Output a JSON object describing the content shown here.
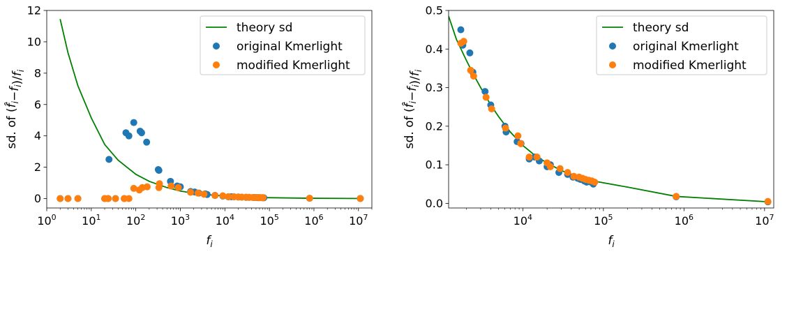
{
  "colors": {
    "theory": "#008000",
    "original": "#1f77b4",
    "modified": "#ff7f0e"
  },
  "chart_data": [
    {
      "type": "scatter",
      "xscale": "log",
      "xlim": [
        1.0,
        20000000
      ],
      "ylim": [
        -0.6,
        12
      ],
      "xlabel": "f_i",
      "ylabel": "sd. of (f̂_i − f_i)/f_i",
      "xticks": [
        {
          "value": 1,
          "base": "10",
          "exp": "0"
        },
        {
          "value": 10,
          "base": "10",
          "exp": "1"
        },
        {
          "value": 100,
          "base": "10",
          "exp": "2"
        },
        {
          "value": 1000,
          "base": "10",
          "exp": "3"
        },
        {
          "value": 10000,
          "base": "10",
          "exp": "4"
        },
        {
          "value": 100000,
          "base": "10",
          "exp": "5"
        },
        {
          "value": 1000000,
          "base": "10",
          "exp": "6"
        },
        {
          "value": 10000000,
          "base": "10",
          "exp": "7"
        }
      ],
      "yticks": [
        {
          "value": 0,
          "label": "0"
        },
        {
          "value": 2,
          "label": "2"
        },
        {
          "value": 4,
          "label": "4"
        },
        {
          "value": 6,
          "label": "6"
        },
        {
          "value": 8,
          "label": "8"
        },
        {
          "value": 10,
          "label": "10"
        },
        {
          "value": 12,
          "label": "12"
        }
      ],
      "legend": {
        "loc": "upper right",
        "entries": [
          "theory sd",
          "original Kmerlight",
          "modified Kmerlight"
        ]
      },
      "series": [
        {
          "name": "theory sd",
          "kind": "line",
          "color_key": "theory",
          "points": [
            [
              2,
              11.45
            ],
            [
              3,
              9.3
            ],
            [
              5,
              7.2
            ],
            [
              10,
              5.15
            ],
            [
              20,
              3.45
            ],
            [
              40,
              2.45
            ],
            [
              100,
              1.55
            ],
            [
              200,
              1.1
            ],
            [
              500,
              0.7
            ],
            [
              1000,
              0.48
            ],
            [
              2000,
              0.34
            ],
            [
              5000,
              0.23
            ],
            [
              10000,
              0.16
            ],
            [
              30000,
              0.1
            ],
            [
              80000,
              0.06
            ],
            [
              800000,
              0.02
            ],
            [
              11000000,
              0.005
            ]
          ]
        },
        {
          "name": "original Kmerlight",
          "kind": "scatter",
          "color_key": "original",
          "points": [
            [
              2,
              0
            ],
            [
              3,
              0
            ],
            [
              5,
              0
            ],
            [
              20,
              0
            ],
            [
              24,
              0
            ],
            [
              25,
              2.5
            ],
            [
              35,
              0
            ],
            [
              55,
              0
            ],
            [
              60,
              4.2
            ],
            [
              70,
              4.0
            ],
            [
              90,
              4.85
            ],
            [
              125,
              4.3
            ],
            [
              135,
              4.2
            ],
            [
              175,
              3.6
            ],
            [
              320,
              1.85
            ],
            [
              330,
              1.8
            ],
            [
              600,
              1.1
            ],
            [
              850,
              0.8
            ],
            [
              1000,
              0.75
            ],
            [
              1700,
              0.45
            ],
            [
              2100,
              0.42
            ],
            [
              2600,
              0.35
            ],
            [
              3600,
              0.3
            ],
            [
              4000,
              0.26
            ],
            [
              6000,
              0.2
            ],
            [
              9000,
              0.16
            ],
            [
              12000,
              0.11
            ],
            [
              14000,
              0.12
            ],
            [
              16000,
              0.11
            ],
            [
              20000,
              0.1
            ],
            [
              24000,
              0.09
            ],
            [
              30000,
              0.08
            ],
            [
              35000,
              0.08
            ],
            [
              45000,
              0.07
            ],
            [
              50000,
              0.07
            ],
            [
              55000,
              0.06
            ],
            [
              60000,
              0.06
            ],
            [
              70000,
              0.05
            ],
            [
              75000,
              0.05
            ],
            [
              800000,
              0.02
            ],
            [
              11000000,
              0.005
            ]
          ]
        },
        {
          "name": "modified Kmerlight",
          "kind": "scatter",
          "color_key": "modified",
          "points": [
            [
              2,
              0
            ],
            [
              3,
              0
            ],
            [
              5,
              0
            ],
            [
              20,
              0
            ],
            [
              24,
              0
            ],
            [
              35,
              0
            ],
            [
              55,
              0
            ],
            [
              70,
              0
            ],
            [
              90,
              0.65
            ],
            [
              120,
              0.55
            ],
            [
              140,
              0.7
            ],
            [
              180,
              0.75
            ],
            [
              330,
              0.7
            ],
            [
              340,
              0.95
            ],
            [
              620,
              0.8
            ],
            [
              900,
              0.7
            ],
            [
              1700,
              0.4
            ],
            [
              2500,
              0.35
            ],
            [
              3400,
              0.28
            ],
            [
              6000,
              0.2
            ],
            [
              9000,
              0.18
            ],
            [
              12000,
              0.12
            ],
            [
              16000,
              0.12
            ],
            [
              20000,
              0.1
            ],
            [
              24000,
              0.09
            ],
            [
              30000,
              0.09
            ],
            [
              35000,
              0.08
            ],
            [
              42000,
              0.07
            ],
            [
              50000,
              0.07
            ],
            [
              58000,
              0.06
            ],
            [
              65000,
              0.06
            ],
            [
              72000,
              0.06
            ],
            [
              800000,
              0.02
            ],
            [
              11000000,
              0.005
            ]
          ]
        }
      ]
    },
    {
      "type": "scatter",
      "xscale": "log",
      "xlim": [
        1200,
        13000000
      ],
      "ylim": [
        -0.012,
        0.5
      ],
      "xlabel": "f_i",
      "ylabel": "sd. of (f̂_i − f_i)/f_i",
      "xticks": [
        {
          "value": 10000,
          "base": "10",
          "exp": "4"
        },
        {
          "value": 100000,
          "base": "10",
          "exp": "5"
        },
        {
          "value": 1000000,
          "base": "10",
          "exp": "6"
        },
        {
          "value": 10000000,
          "base": "10",
          "exp": "7"
        }
      ],
      "yticks": [
        {
          "value": 0.0,
          "label": "0.0"
        },
        {
          "value": 0.1,
          "label": "0.1"
        },
        {
          "value": 0.2,
          "label": "0.2"
        },
        {
          "value": 0.3,
          "label": "0.3"
        },
        {
          "value": 0.4,
          "label": "0.4"
        },
        {
          "value": 0.5,
          "label": "0.5"
        }
      ],
      "legend": {
        "loc": "upper right",
        "entries": [
          "theory sd",
          "original Kmerlight",
          "modified Kmerlight"
        ]
      },
      "series": [
        {
          "name": "theory sd",
          "kind": "line",
          "color_key": "theory",
          "points": [
            [
              1200,
              0.485
            ],
            [
              1500,
              0.425
            ],
            [
              2000,
              0.37
            ],
            [
              2500,
              0.33
            ],
            [
              3000,
              0.3
            ],
            [
              4000,
              0.255
            ],
            [
              5000,
              0.225
            ],
            [
              7000,
              0.185
            ],
            [
              10000,
              0.15
            ],
            [
              15000,
              0.12
            ],
            [
              20000,
              0.105
            ],
            [
              30000,
              0.085
            ],
            [
              50000,
              0.068
            ],
            [
              80000,
              0.057
            ],
            [
              200000,
              0.042
            ],
            [
              800000,
              0.018
            ],
            [
              11000000,
              0.004
            ]
          ]
        },
        {
          "name": "original Kmerlight",
          "kind": "scatter",
          "color_key": "original",
          "points": [
            [
              1700,
              0.45
            ],
            [
              1800,
              0.41
            ],
            [
              2200,
              0.39
            ],
            [
              2400,
              0.34
            ],
            [
              3400,
              0.29
            ],
            [
              4000,
              0.255
            ],
            [
              6000,
              0.2
            ],
            [
              6200,
              0.185
            ],
            [
              8500,
              0.16
            ],
            [
              9500,
              0.155
            ],
            [
              12000,
              0.115
            ],
            [
              14000,
              0.12
            ],
            [
              16000,
              0.11
            ],
            [
              20000,
              0.095
            ],
            [
              22000,
              0.1
            ],
            [
              28000,
              0.08
            ],
            [
              36000,
              0.075
            ],
            [
              42000,
              0.068
            ],
            [
              48000,
              0.065
            ],
            [
              52000,
              0.062
            ],
            [
              58000,
              0.058
            ],
            [
              62000,
              0.055
            ],
            [
              70000,
              0.055
            ],
            [
              75000,
              0.05
            ],
            [
              800000,
              0.017
            ],
            [
              11000000,
              0.004
            ]
          ]
        },
        {
          "name": "modified Kmerlight",
          "kind": "scatter",
          "color_key": "modified",
          "points": [
            [
              1700,
              0.415
            ],
            [
              1850,
              0.42
            ],
            [
              2250,
              0.345
            ],
            [
              2450,
              0.33
            ],
            [
              3500,
              0.275
            ],
            [
              4100,
              0.245
            ],
            [
              6100,
              0.195
            ],
            [
              8700,
              0.175
            ],
            [
              9400,
              0.155
            ],
            [
              12000,
              0.12
            ],
            [
              15000,
              0.12
            ],
            [
              20000,
              0.105
            ],
            [
              22000,
              0.095
            ],
            [
              29000,
              0.09
            ],
            [
              36000,
              0.08
            ],
            [
              43000,
              0.07
            ],
            [
              50000,
              0.068
            ],
            [
              55000,
              0.065
            ],
            [
              60000,
              0.062
            ],
            [
              66000,
              0.06
            ],
            [
              72000,
              0.058
            ],
            [
              78000,
              0.055
            ],
            [
              800000,
              0.018
            ],
            [
              11000000,
              0.005
            ]
          ]
        }
      ]
    }
  ]
}
